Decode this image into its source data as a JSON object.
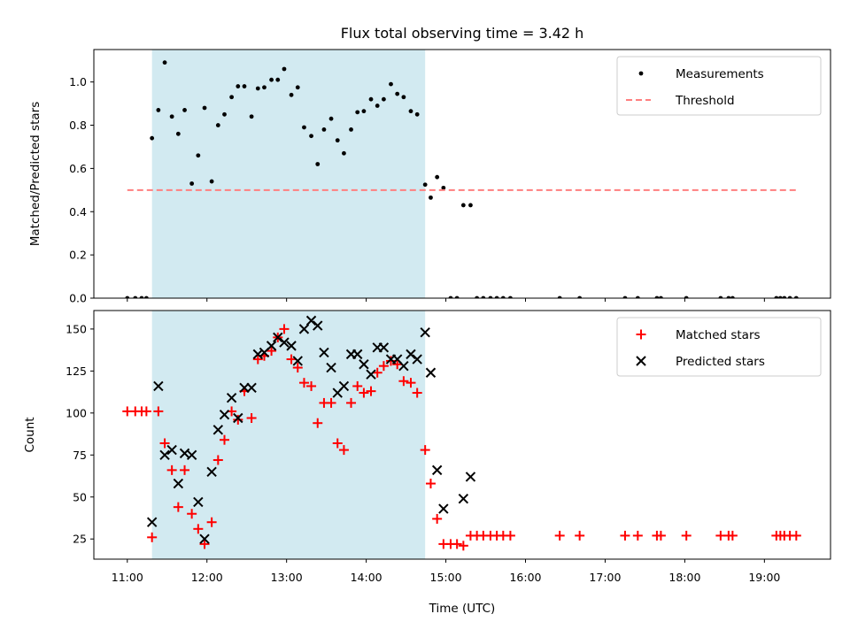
{
  "chart_data": {
    "title": "Flux total observing time = 3.42 h",
    "xlabel": "Time (UTC)",
    "x_unit": "hours UTC",
    "xlim": [
      10.58,
      19.83
    ],
    "x_ticks": [
      {
        "value": 11,
        "label": "11:00"
      },
      {
        "value": 12,
        "label": "12:00"
      },
      {
        "value": 13,
        "label": "13:00"
      },
      {
        "value": 14,
        "label": "14:00"
      },
      {
        "value": 15,
        "label": "15:00"
      },
      {
        "value": 16,
        "label": "16:00"
      },
      {
        "value": 17,
        "label": "17:00"
      },
      {
        "value": 18,
        "label": "18:00"
      },
      {
        "value": 19,
        "label": "19:00"
      }
    ],
    "shaded_region": {
      "x": [
        11.31,
        14.74
      ],
      "color": "#add8e6"
    },
    "panels": [
      {
        "type": "scatter",
        "ylabel": "Matched/Predicted stars",
        "ylim": [
          0,
          1.15
        ],
        "y_ticks": [
          0.0,
          0.2,
          0.4,
          0.6,
          0.8,
          1.0
        ],
        "y_tick_labels": [
          "0.0",
          "0.2",
          "0.4",
          "0.6",
          "0.8",
          "1.0"
        ],
        "legend_position": "top-right",
        "series": [
          {
            "name": "Measurements",
            "marker": "dot",
            "color": "#000000",
            "x": [
              11.0,
              11.1,
              11.18,
              11.24,
              11.31,
              11.39,
              11.47,
              11.56,
              11.64,
              11.72,
              11.81,
              11.89,
              11.97,
              12.06,
              12.14,
              12.22,
              12.31,
              12.39,
              12.47,
              12.56,
              12.64,
              12.72,
              12.81,
              12.89,
              12.97,
              13.06,
              13.14,
              13.22,
              13.31,
              13.39,
              13.47,
              13.56,
              13.64,
              13.72,
              13.81,
              13.89,
              13.97,
              14.06,
              14.14,
              14.22,
              14.31,
              14.39,
              14.47,
              14.56,
              14.64,
              14.74,
              14.81,
              14.89,
              14.97,
              15.06,
              15.14,
              15.22,
              15.31,
              15.39,
              15.47,
              15.56,
              15.64,
              15.72,
              15.81,
              16.43,
              16.68,
              17.25,
              17.41,
              17.65,
              17.7,
              18.02,
              18.45,
              18.55,
              18.6,
              19.15,
              19.2,
              19.25,
              19.32,
              19.4
            ],
            "y": [
              0,
              0,
              0,
              0,
              0.74,
              0.87,
              1.09,
              0.84,
              0.76,
              0.87,
              0.53,
              0.66,
              0.88,
              0.54,
              0.8,
              0.85,
              0.93,
              0.98,
              0.98,
              0.84,
              0.97,
              0.975,
              1.01,
              1.01,
              1.06,
              0.94,
              0.975,
              0.79,
              0.75,
              0.62,
              0.78,
              0.83,
              0.73,
              0.67,
              0.78,
              0.86,
              0.865,
              0.92,
              0.89,
              0.92,
              0.99,
              0.945,
              0.93,
              0.865,
              0.85,
              0.525,
              0.465,
              0.56,
              0.51,
              0,
              0,
              0.43,
              0.43,
              0,
              0,
              0,
              0,
              0,
              0,
              0,
              0,
              0,
              0,
              0,
              0,
              0,
              0,
              0,
              0,
              0,
              0,
              0,
              0,
              0
            ]
          },
          {
            "name": "Threshold",
            "marker": "dashed-line",
            "color": "#ff7f7f",
            "x": [
              11.0,
              19.4
            ],
            "y": [
              0.5,
              0.5
            ]
          }
        ]
      },
      {
        "type": "scatter",
        "ylabel": "Count",
        "ylim": [
          13,
          161
        ],
        "y_ticks": [
          25,
          50,
          75,
          100,
          125,
          150
        ],
        "y_tick_labels": [
          "25",
          "50",
          "75",
          "100",
          "125",
          "150"
        ],
        "legend_position": "top-right",
        "series": [
          {
            "name": "Matched stars",
            "marker": "plus",
            "color": "#ff0000",
            "x": [
              11.0,
              11.1,
              11.18,
              11.24,
              11.31,
              11.39,
              11.47,
              11.56,
              11.64,
              11.72,
              11.81,
              11.89,
              11.97,
              12.06,
              12.14,
              12.22,
              12.31,
              12.39,
              12.47,
              12.56,
              12.64,
              12.72,
              12.81,
              12.89,
              12.97,
              13.06,
              13.14,
              13.22,
              13.31,
              13.39,
              13.47,
              13.56,
              13.64,
              13.72,
              13.81,
              13.89,
              13.97,
              14.06,
              14.14,
              14.22,
              14.31,
              14.39,
              14.47,
              14.56,
              14.64,
              14.74,
              14.81,
              14.89,
              14.97,
              15.06,
              15.14,
              15.22,
              15.31,
              15.39,
              15.47,
              15.56,
              15.64,
              15.72,
              15.81,
              16.43,
              16.68,
              17.25,
              17.41,
              17.65,
              17.7,
              18.02,
              18.45,
              18.55,
              18.6,
              19.15,
              19.2,
              19.25,
              19.32,
              19.4
            ],
            "y": [
              101,
              101,
              101,
              101,
              26,
              101,
              82,
              66,
              44,
              66,
              40,
              31,
              22,
              35,
              72,
              84,
              101,
              96,
              113,
              97,
              132,
              134,
              137,
              145,
              150,
              132,
              127,
              118,
              116,
              94,
              106,
              106,
              82,
              78,
              106,
              116,
              112,
              113,
              124,
              128,
              131,
              129,
              119,
              118,
              112,
              78,
              58,
              37,
              22,
              22,
              22,
              21,
              27,
              27,
              27,
              27,
              27,
              27,
              27,
              27,
              27,
              27,
              27,
              27,
              27,
              27,
              27,
              27,
              27,
              27,
              27,
              27,
              27,
              27
            ]
          },
          {
            "name": "Predicted stars",
            "marker": "x",
            "color": "#000000",
            "x": [
              11.31,
              11.39,
              11.47,
              11.56,
              11.64,
              11.72,
              11.81,
              11.89,
              11.97,
              12.06,
              12.14,
              12.22,
              12.31,
              12.39,
              12.47,
              12.56,
              12.64,
              12.72,
              12.81,
              12.89,
              12.97,
              13.06,
              13.14,
              13.22,
              13.31,
              13.39,
              13.47,
              13.56,
              13.64,
              13.72,
              13.81,
              13.89,
              13.97,
              14.06,
              14.14,
              14.22,
              14.31,
              14.39,
              14.47,
              14.56,
              14.64,
              14.74,
              14.81,
              14.89,
              14.97,
              15.22,
              15.31
            ],
            "y": [
              35,
              116,
              75,
              78,
              58,
              76,
              75,
              47,
              25,
              65,
              90,
              99,
              109,
              97,
              115,
              115,
              135,
              136,
              140,
              145,
              142,
              140,
              131,
              150,
              155,
              152,
              136,
              127,
              112,
              116,
              135,
              135,
              129,
              123,
              139,
              139,
              132,
              132,
              128,
              135,
              132,
              148,
              124,
              66,
              43,
              49,
              62
            ]
          }
        ]
      }
    ]
  },
  "colors": {
    "shade": "#add8e6",
    "threshold": "#ff7f7f",
    "matched": "#ff0000",
    "predicted": "#000000",
    "measurement": "#000000"
  }
}
